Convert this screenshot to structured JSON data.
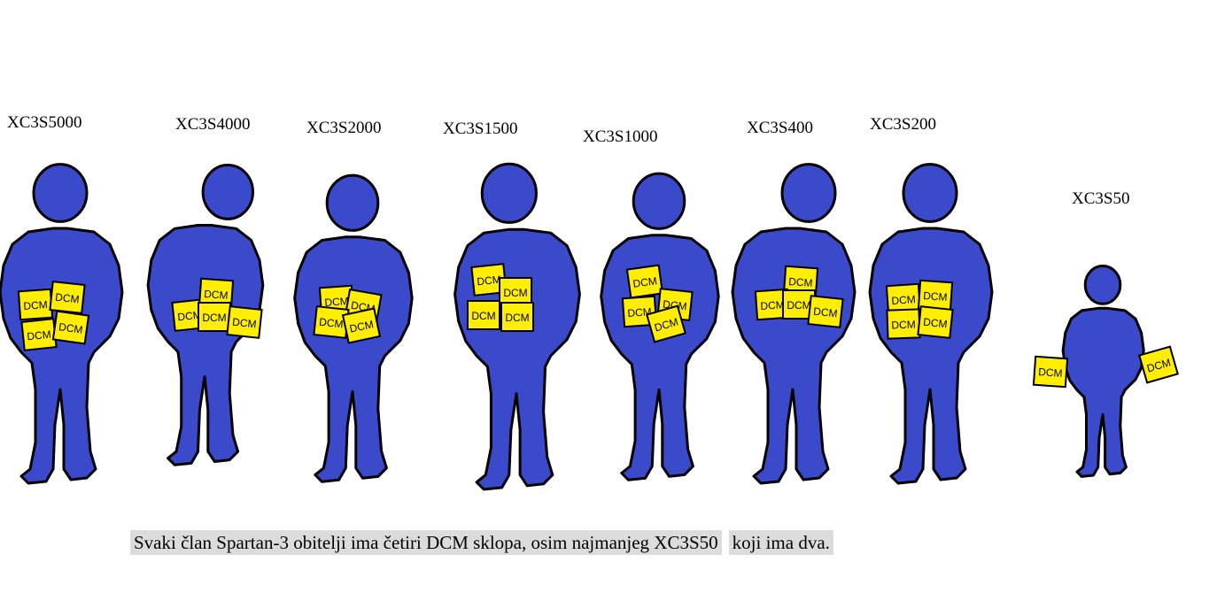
{
  "colors": {
    "body": "#3b4acb",
    "outline": "#000000",
    "dcm_fill": "#ffee00",
    "caption_bg": "#dcdcdc"
  },
  "dcm_label": "DCM",
  "figures": [
    {
      "name": "XC3S5000",
      "dcm_count": 4
    },
    {
      "name": "XC3S4000",
      "dcm_count": 4
    },
    {
      "name": "XC3S2000",
      "dcm_count": 4
    },
    {
      "name": "XC3S1500",
      "dcm_count": 4
    },
    {
      "name": "XC3S1000",
      "dcm_count": 4
    },
    {
      "name": "XC3S400",
      "dcm_count": 4
    },
    {
      "name": "XC3S200",
      "dcm_count": 4
    },
    {
      "name": "XC3S50",
      "dcm_count": 2
    }
  ],
  "caption": {
    "part1": "Svaki član Spartan-3 obitelji ima četiri DCM sklopa, osim najmanjeg XC3S50",
    "part2": "koji ima dva."
  }
}
